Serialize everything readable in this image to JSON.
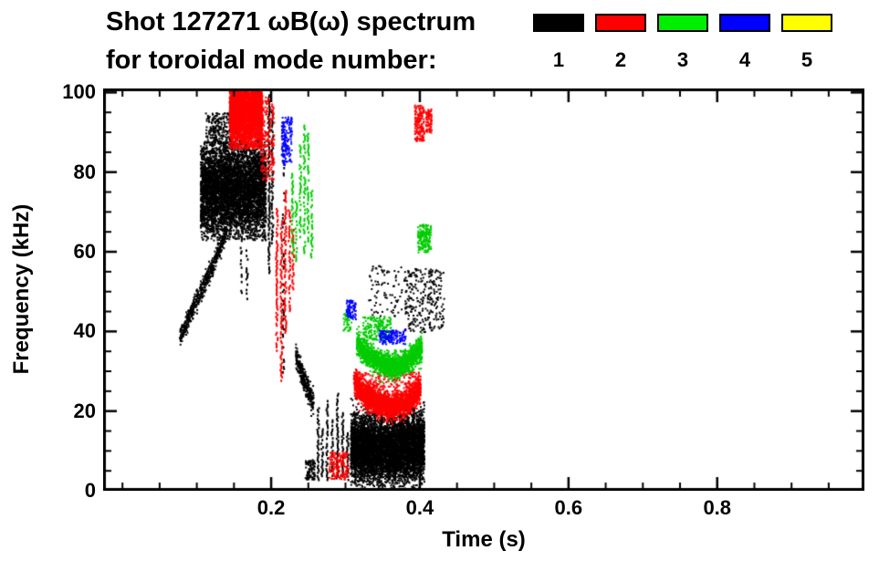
{
  "chart_data": {
    "type": "scatter",
    "title_line1": "Shot 127271 ωB(ω) spectrum",
    "title_line2": "for toroidal mode number:",
    "xlabel": "Time (s)",
    "ylabel": "Frequency (kHz)",
    "xlim": [
      -0.026,
      0.998
    ],
    "ylim": [
      0,
      101
    ],
    "grid": false,
    "legend_position": "top-right",
    "axis_color": "#000000",
    "xticks": [
      {
        "value": 0.2,
        "label": "0.2"
      },
      {
        "value": 0.4,
        "label": "0.4"
      },
      {
        "value": 0.6,
        "label": "0.6"
      },
      {
        "value": 0.8,
        "label": "0.8"
      }
    ],
    "xminor_step": 0.05,
    "yticks": [
      {
        "value": 0,
        "label": "0"
      },
      {
        "value": 20,
        "label": "20"
      },
      {
        "value": 40,
        "label": "40"
      },
      {
        "value": 60,
        "label": "60"
      },
      {
        "value": 80,
        "label": "80"
      },
      {
        "value": 100,
        "label": "100"
      }
    ],
    "yminor_step": 5,
    "legend": [
      {
        "label": "1",
        "color": "#000000",
        "name": "toroidal mode n=1"
      },
      {
        "label": "2",
        "color": "#ff0000",
        "name": "toroidal mode n=2"
      },
      {
        "label": "3",
        "color": "#00ee00",
        "name": "toroidal mode n=3"
      },
      {
        "label": "4",
        "color": "#0000ff",
        "name": "toroidal mode n=4"
      },
      {
        "label": "5",
        "color": "#ffff00",
        "name": "toroidal mode n=5"
      }
    ],
    "series": [
      {
        "name": "n=1",
        "color": "#000000",
        "features": [
          {
            "type": "path",
            "pts": [
              [
                0.076,
                39
              ],
              [
                0.096,
                47
              ],
              [
                0.118,
                56
              ],
              [
                0.138,
                65
              ]
            ],
            "thickness": 1.2,
            "n": 550
          },
          {
            "type": "blob",
            "t": [
              0.104,
              0.192
            ],
            "f": [
              63,
              88
            ],
            "gauss": {
              "fc": 76,
              "fsd": 6
            },
            "n": 5200,
            "size": 2
          },
          {
            "type": "blob",
            "t": [
              0.111,
              0.158
            ],
            "f": [
              87,
              95
            ],
            "n": 300,
            "size": 2
          },
          {
            "type": "vlines",
            "segs": [
              [
                0.1585,
                50,
                64
              ],
              [
                0.1665,
                48,
                61
              ]
            ],
            "p": 0.55
          },
          {
            "type": "vlines",
            "segs": [
              [
                0.196,
                55,
                100
              ],
              [
                0.2005,
                62,
                96
              ]
            ],
            "p": 0.85
          },
          {
            "type": "vlines",
            "segs": [
              [
                0.2155,
                30,
                90
              ]
            ],
            "p": 0.35
          },
          {
            "type": "path",
            "pts": [
              [
                0.232,
                34
              ],
              [
                0.243,
                28
              ],
              [
                0.256,
                22
              ]
            ],
            "thickness": 1.5,
            "n": 300
          },
          {
            "type": "blob",
            "t": [
              0.245,
              0.258
            ],
            "f": [
              3,
              8
            ],
            "n": 90,
            "size": 2
          },
          {
            "type": "vlines",
            "segs": [
              [
                0.262,
                3,
                21
              ],
              [
                0.2675,
                4,
                16
              ],
              [
                0.274,
                3,
                23
              ],
              [
                0.281,
                4,
                18
              ],
              [
                0.288,
                3,
                25
              ],
              [
                0.295,
                4,
                20
              ],
              [
                0.3015,
                3,
                15
              ]
            ],
            "p": 0.8
          },
          {
            "type": "path",
            "pts": [
              [
                0.306,
                11
              ],
              [
                0.355,
                10.5
              ],
              [
                0.405,
                11.5
              ]
            ],
            "thickness": 4.2,
            "n": 5600
          },
          {
            "type": "vlines",
            "segs": [
              [
                0.312,
                4,
                20
              ],
              [
                0.3205,
                5,
                19
              ],
              [
                0.329,
                4,
                21
              ],
              [
                0.338,
                5,
                22
              ],
              [
                0.347,
                4,
                20
              ],
              [
                0.356,
                5,
                23
              ],
              [
                0.3645,
                4,
                21
              ],
              [
                0.373,
                5,
                20
              ],
              [
                0.382,
                4,
                22
              ],
              [
                0.3905,
                5,
                21
              ],
              [
                0.398,
                4,
                19
              ]
            ],
            "p": 0.75
          },
          {
            "type": "blob",
            "t": [
              0.378,
              0.432
            ],
            "f": [
              40,
              56
            ],
            "n": 280,
            "size": 2
          },
          {
            "type": "blob",
            "t": [
              0.33,
              0.376
            ],
            "f": [
              44,
              57
            ],
            "n": 80,
            "size": 2
          }
        ]
      },
      {
        "name": "n=2",
        "color": "#ff0000",
        "features": [
          {
            "type": "blob",
            "t": [
              0.143,
              0.187
            ],
            "f": [
              86,
              100.5
            ],
            "gauss": {
              "fc": 97,
              "fsd": 5
            },
            "n": 3000,
            "size": 2
          },
          {
            "type": "blob",
            "t": [
              0.184,
              0.203
            ],
            "f": [
              78,
              99
            ],
            "n": 220,
            "size": 2
          },
          {
            "type": "vlines",
            "segs": [
              [
                0.2065,
                35,
                72
              ],
              [
                0.2125,
                27,
                68
              ],
              [
                0.218,
                40,
                76
              ],
              [
                0.2235,
                45,
                71
              ],
              [
                0.2285,
                50,
                66
              ]
            ],
            "p": 0.7
          },
          {
            "type": "path",
            "pts": [
              [
                0.311,
                27.5
              ],
              [
                0.325,
                24
              ],
              [
                0.341,
                22.5
              ],
              [
                0.357,
                21.3
              ],
              [
                0.372,
                21.8
              ],
              [
                0.386,
                23.2
              ],
              [
                0.4,
                25.8
              ]
            ],
            "thickness": 1.6,
            "n": 2400
          },
          {
            "type": "blob",
            "t": [
              0.31,
              0.4
            ],
            "f": [
              26,
              30
            ],
            "n": 200,
            "size": 2
          },
          {
            "type": "blob",
            "t": [
              0.392,
              0.405
            ],
            "f": [
              88,
              97
            ],
            "n": 170,
            "size": 2
          },
          {
            "type": "blob",
            "t": [
              0.407,
              0.415
            ],
            "f": [
              90,
              96
            ],
            "n": 80,
            "size": 2
          },
          {
            "type": "blob",
            "t": [
              0.277,
              0.303
            ],
            "f": [
              3,
              10
            ],
            "n": 150,
            "size": 2
          }
        ]
      },
      {
        "name": "n=3",
        "color": "#00cc00",
        "features": [
          {
            "type": "vlines",
            "segs": [
              [
                0.2275,
                60,
                80
              ],
              [
                0.2325,
                58,
                74
              ],
              [
                0.238,
                64,
                87
              ],
              [
                0.2435,
                60,
                92
              ],
              [
                0.2485,
                62,
                90
              ],
              [
                0.2535,
                58,
                76
              ]
            ],
            "p": 0.65
          },
          {
            "type": "path",
            "pts": [
              [
                0.314,
                37.5
              ],
              [
                0.33,
                34
              ],
              [
                0.346,
                32.3
              ],
              [
                0.361,
                31.4
              ],
              [
                0.376,
                31.9
              ],
              [
                0.39,
                33.8
              ],
              [
                0.402,
                36.2
              ]
            ],
            "thickness": 1.5,
            "n": 1800
          },
          {
            "type": "blob",
            "t": [
              0.322,
              0.36
            ],
            "f": [
              38,
              44
            ],
            "n": 200,
            "size": 2
          },
          {
            "type": "blob",
            "t": [
              0.396,
              0.414
            ],
            "f": [
              60,
              67
            ],
            "n": 180,
            "size": 2
          },
          {
            "type": "blob",
            "t": [
              0.296,
              0.307
            ],
            "f": [
              40,
              46
            ],
            "n": 50,
            "size": 2
          }
        ]
      },
      {
        "name": "n=4",
        "color": "#0000ff",
        "features": [
          {
            "type": "blob",
            "t": [
              0.213,
              0.227
            ],
            "f": [
              82,
              94
            ],
            "n": 160,
            "size": 2
          },
          {
            "type": "blob",
            "t": [
              0.3,
              0.313
            ],
            "f": [
              43,
              48
            ],
            "n": 80,
            "size": 2
          },
          {
            "type": "blob",
            "t": [
              0.344,
              0.38
            ],
            "f": [
              37,
              40.5
            ],
            "n": 140,
            "size": 2
          }
        ]
      },
      {
        "name": "n=5",
        "color": "#ffff00",
        "features": []
      }
    ]
  }
}
